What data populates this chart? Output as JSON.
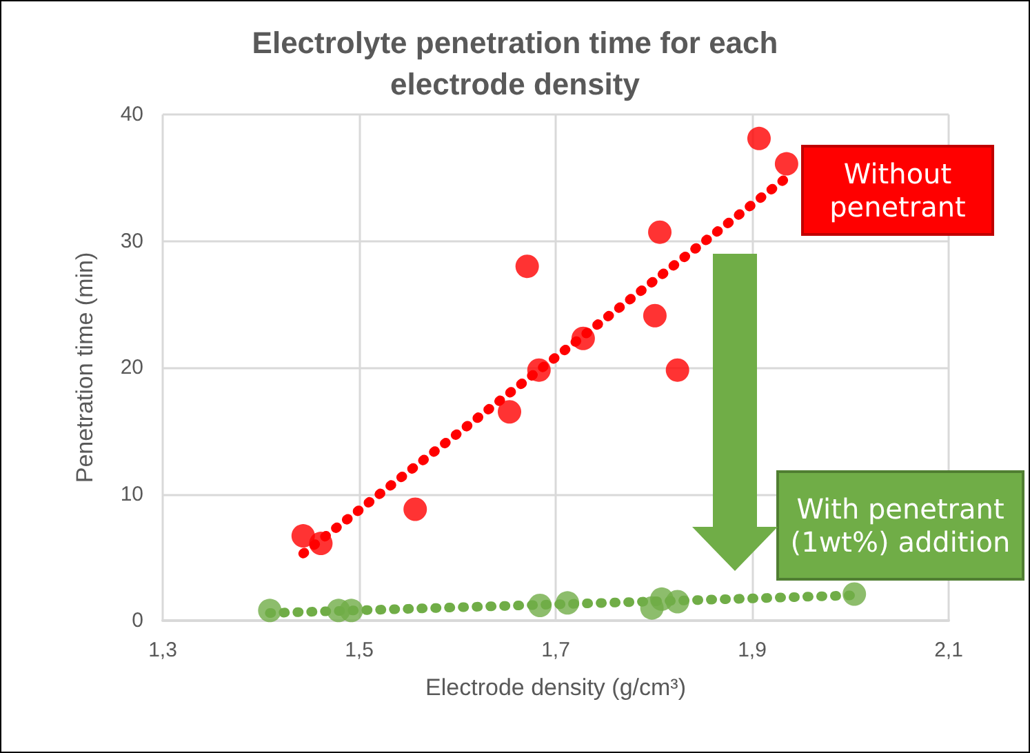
{
  "chart_data": {
    "type": "scatter",
    "title": "Electrolyte penetration time for each\nelectrode density",
    "xlabel": "Electrode density (g/cm³)",
    "ylabel": "Penetration time (min)",
    "series": [
      {
        "color": "#ff0000",
        "marker": "circle",
        "x": [
          1.443,
          1.461,
          1.557,
          1.653,
          1.671,
          1.683,
          1.728,
          1.806,
          1.801,
          1.824,
          1.907,
          1.935
        ],
        "values": [
          6.7,
          6.1,
          8.8,
          16.5,
          28.0,
          19.8,
          22.3,
          30.7,
          24.1,
          19.8,
          38.1,
          36.1
        ]
      },
      {
        "color": "#70ad47",
        "marker": "circle",
        "x": [
          1.409,
          1.479,
          1.492,
          1.684,
          1.712,
          1.798,
          1.808,
          1.824,
          2.004
        ],
        "values": [
          0.8,
          0.8,
          0.8,
          1.2,
          1.4,
          1.0,
          1.7,
          1.5,
          2.1
        ]
      },
      {
        "type": "line",
        "color": "#ff0000",
        "marker": "none",
        "line_style": "dotted",
        "x": [
          1.443,
          1.935
        ],
        "values": [
          5.3,
          35.0
        ]
      },
      {
        "type": "line",
        "color": "#70ad47",
        "marker": "none",
        "line_style": "dotted",
        "x": [
          1.409,
          2.004
        ],
        "values": [
          0.6,
          2.0
        ]
      }
    ],
    "annotations": [
      "Without penetrant",
      "With penetrant (1wt%) addition"
    ],
    "xlim": [
      1.3,
      2.1
    ],
    "xticks": [
      {
        "value": 1.3,
        "label": "1,3"
      },
      {
        "value": 1.5,
        "label": "1,5"
      },
      {
        "value": 1.7,
        "label": "1,7"
      },
      {
        "value": 1.9,
        "label": "1,9"
      },
      {
        "value": 2.1,
        "label": "2,1"
      }
    ],
    "ylim": [
      0,
      40
    ],
    "yticks": [
      0,
      10,
      20,
      30,
      40
    ],
    "grid": true
  }
}
